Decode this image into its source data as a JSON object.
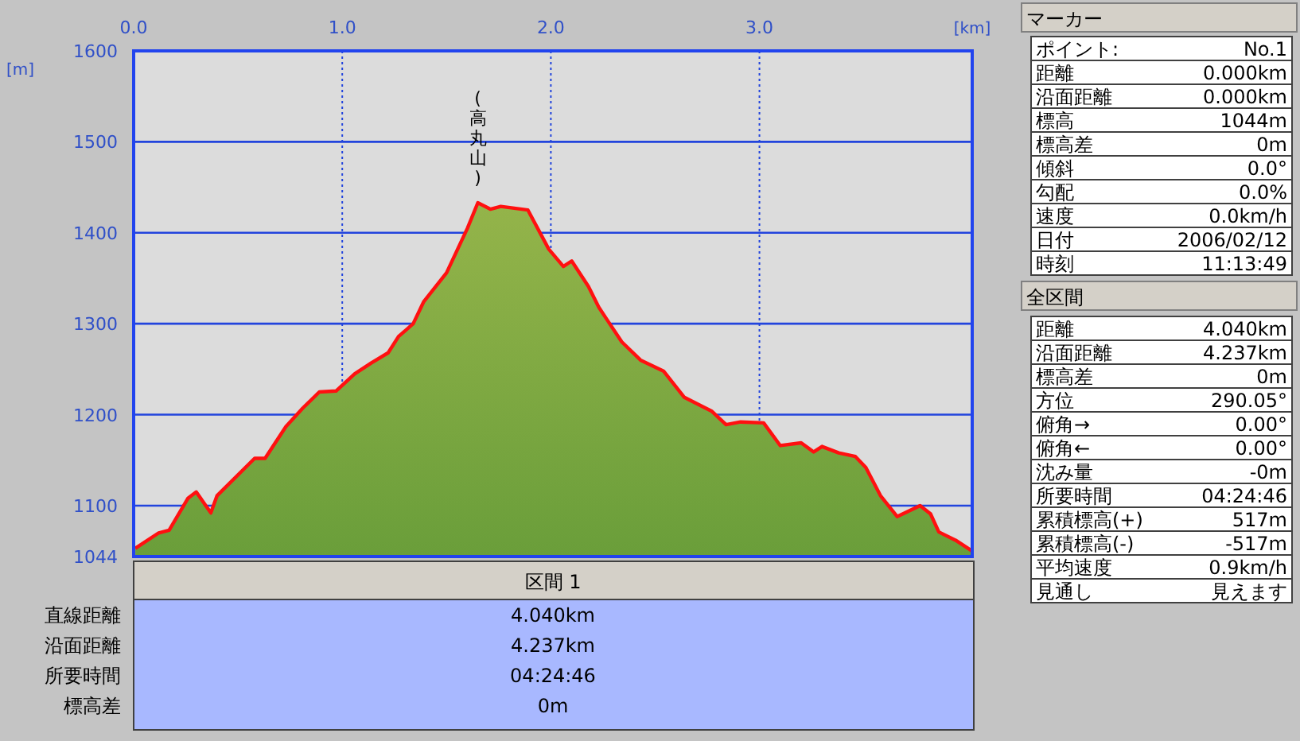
{
  "chart_data": {
    "type": "area",
    "xlabel": "[km]",
    "ylabel": "[m]",
    "xlim": [
      0,
      4.02
    ],
    "ylim": [
      1044,
      1600
    ],
    "xticks": [
      {
        "value": 0,
        "label": "0.0"
      },
      {
        "value": 1,
        "label": "1.0"
      },
      {
        "value": 2,
        "label": "2.0"
      },
      {
        "value": 3,
        "label": "3.0"
      }
    ],
    "yticks": [
      1044,
      1100,
      1200,
      1300,
      1400,
      1500,
      1600
    ],
    "grid": true,
    "series": [
      {
        "color": "#6a9e3a",
        "x": [
          0.008,
          0.12,
          0.17,
          0.26,
          0.3,
          0.37,
          0.4,
          0.58,
          0.63,
          0.73,
          0.81,
          0.89,
          0.97,
          1.06,
          1.14,
          1.22,
          1.27,
          1.34,
          1.39,
          1.5,
          1.6,
          1.65,
          1.71,
          1.76,
          1.89,
          1.99,
          2.06,
          2.1,
          2.18,
          2.23,
          2.34,
          2.43,
          2.54,
          2.64,
          2.77,
          2.84,
          2.91,
          3.02,
          3.1,
          3.2,
          3.26,
          3.3,
          3.38,
          3.46,
          3.51,
          3.58,
          3.66,
          3.77,
          3.82,
          3.86,
          3.94,
          4.02
        ],
        "values": [
          1053,
          1070,
          1073,
          1108,
          1115,
          1092,
          1111,
          1152,
          1152,
          1187,
          1207,
          1225,
          1226,
          1245,
          1257,
          1268,
          1286,
          1300,
          1324,
          1356,
          1405,
          1433,
          1426,
          1429,
          1425,
          1382,
          1363,
          1369,
          1341,
          1318,
          1280,
          1260,
          1248,
          1219,
          1204,
          1189,
          1192,
          1191,
          1166,
          1169,
          1159,
          1165,
          1158,
          1154,
          1142,
          1111,
          1088,
          1100,
          1091,
          1071,
          1062,
          1050
        ]
      }
    ],
    "annotations": [
      "マーカー",
      "ポイント:",
      "No.1",
      "距離",
      "0.000km",
      "沿面距離",
      "0.000km",
      "標高",
      "1044m",
      "標高差",
      "0m",
      "傾斜",
      "0.0°",
      "勾配",
      "0.0%",
      "速度",
      "0.0km/h",
      "日付",
      "2006/02/12",
      "時刻",
      "11:13:49",
      "全区間",
      "距離",
      "4.040km",
      "沿面距離",
      "4.237km",
      "標高差",
      "0m",
      "方位",
      "290.05°",
      "俯角→",
      "0.00°",
      "俯角←",
      "0.00°",
      "沈み量",
      "-0m",
      "所要時間",
      "04:24:46",
      "累積標高(+)",
      "517m",
      "累積標高(-)",
      "-517m",
      "平均速度",
      "0.9km/h",
      "見通し",
      "見えます",
      "区間 1",
      "直線距離",
      "4.040km",
      "沿面距離",
      "4.237km",
      "所要時間",
      "04:24:46",
      "標高差",
      "0m",
      {
        "text": "(高丸山)",
        "x": 1.65,
        "y": 1433
      }
    ]
  }
}
